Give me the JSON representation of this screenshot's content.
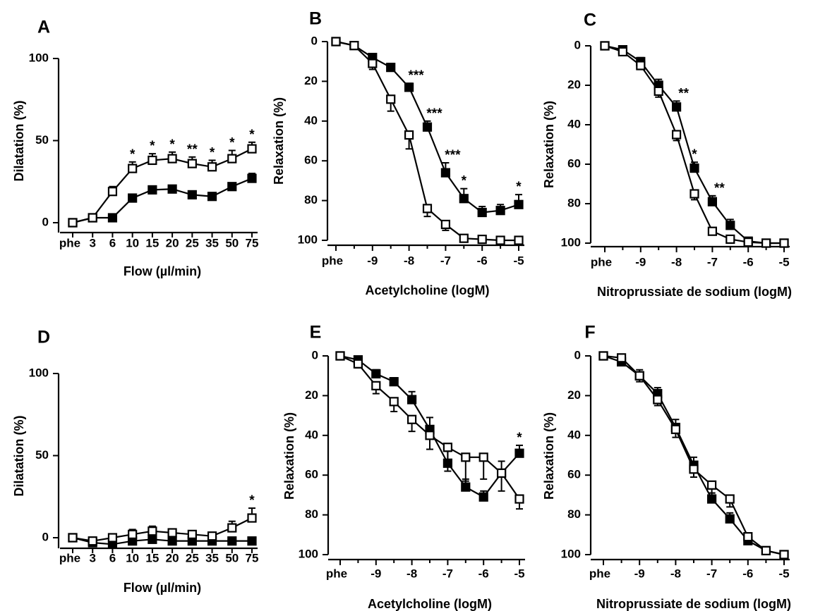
{
  "chart_data": [
    {
      "panel": "A",
      "type": "line",
      "orientation": "up",
      "xlabel": "Flow (µl/min)",
      "ylabel": "Dilatation (%)",
      "ylim": [
        0,
        100
      ],
      "categories": [
        "phe",
        "3",
        "6",
        "10",
        "15",
        "20",
        "25",
        "35",
        "50",
        "75"
      ],
      "yticks": [
        0,
        50,
        100
      ],
      "series": [
        {
          "marker": "filled-square",
          "values": [
            0,
            3,
            3,
            15,
            20,
            20.5,
            17,
            16,
            22,
            27
          ],
          "err": [
            0,
            1,
            1.5,
            2,
            2,
            2,
            2,
            2,
            2,
            3
          ]
        },
        {
          "marker": "open-square",
          "values": [
            0,
            3,
            19,
            33,
            38,
            39,
            36,
            34,
            39,
            45
          ],
          "err": [
            0,
            1,
            3,
            4,
            4,
            4,
            4,
            4,
            5,
            4
          ]
        }
      ],
      "annotations": [
        {
          "category": "10",
          "text": "*"
        },
        {
          "category": "15",
          "text": "*"
        },
        {
          "category": "20",
          "text": "*"
        },
        {
          "category": "25",
          "text": "**"
        },
        {
          "category": "35",
          "text": "*"
        },
        {
          "category": "50",
          "text": "*"
        },
        {
          "category": "75",
          "text": "*"
        }
      ]
    },
    {
      "panel": "B",
      "type": "line",
      "orientation": "down",
      "xlabel": "Acetylcholine (logM)",
      "ylabel": "Relaxation (%)",
      "ylim": [
        0,
        100
      ],
      "x_ticks": [
        {
          "x": -10,
          "label": "phe"
        },
        {
          "x": -9,
          "label": "-9"
        },
        {
          "x": -8,
          "label": "-8"
        },
        {
          "x": -7,
          "label": "-7"
        },
        {
          "x": -6,
          "label": "-6"
        },
        {
          "x": -5,
          "label": "-5"
        }
      ],
      "yticks": [
        0,
        20,
        40,
        60,
        80,
        100
      ],
      "x": [
        -10,
        -9.5,
        -9,
        -8.5,
        -8,
        -7.5,
        -7,
        -6.5,
        -6,
        -5.5,
        -5
      ],
      "series": [
        {
          "marker": "filled-square",
          "values": [
            0,
            2,
            8,
            13,
            23,
            43,
            66,
            79,
            86,
            85,
            82
          ],
          "err": [
            0,
            1,
            1.5,
            2,
            2,
            3,
            5,
            5,
            3,
            3,
            5
          ]
        },
        {
          "marker": "open-square",
          "values": [
            0,
            2,
            11,
            29,
            47,
            84,
            92,
            99,
            99.5,
            100,
            100
          ],
          "err": [
            0,
            1,
            3,
            6,
            7,
            4,
            3,
            1,
            0.5,
            0,
            0
          ]
        }
      ],
      "annotations": [
        {
          "x": -8,
          "text": "***"
        },
        {
          "x": -7.5,
          "text": "***"
        },
        {
          "x": -7,
          "text": "***"
        },
        {
          "x": -6.5,
          "text": "*"
        },
        {
          "x": -5,
          "text": "*"
        }
      ]
    },
    {
      "panel": "C",
      "type": "line",
      "orientation": "down",
      "xlabel": "Nitroprussiate de sodium (logM)",
      "ylabel": "Relaxation (%)",
      "ylim": [
        0,
        100
      ],
      "x_ticks": [
        {
          "x": -10,
          "label": "phe"
        },
        {
          "x": -9,
          "label": "-9"
        },
        {
          "x": -8,
          "label": "-8"
        },
        {
          "x": -7,
          "label": "-7"
        },
        {
          "x": -6,
          "label": "-6"
        },
        {
          "x": -5,
          "label": "-5"
        }
      ],
      "yticks": [
        0,
        20,
        40,
        60,
        80,
        100
      ],
      "x": [
        -10,
        -9.5,
        -9,
        -8.5,
        -8,
        -7.5,
        -7,
        -6.5,
        -6,
        -5.5,
        -5
      ],
      "series": [
        {
          "marker": "filled-square",
          "values": [
            0,
            2,
            8,
            20,
            31,
            62,
            79,
            91,
            99,
            100,
            100
          ],
          "err": [
            0,
            1,
            2,
            3,
            3,
            3,
            3,
            3,
            1,
            0,
            0
          ]
        },
        {
          "marker": "open-square",
          "values": [
            0,
            3,
            10,
            23,
            45,
            75,
            94,
            98,
            99.5,
            100,
            100
          ],
          "err": [
            0,
            1,
            2,
            3,
            3,
            3,
            1,
            1,
            0.5,
            0,
            0
          ]
        }
      ],
      "annotations": [
        {
          "x": -8,
          "text": "**"
        },
        {
          "x": -7.5,
          "text": "*"
        },
        {
          "x": -7,
          "text": "**"
        }
      ]
    },
    {
      "panel": "D",
      "type": "line",
      "orientation": "up",
      "xlabel": "Flow (µl/min)",
      "ylabel": "Dilatation (%)",
      "ylim": [
        0,
        100
      ],
      "categories": [
        "phe",
        "3",
        "6",
        "10",
        "15",
        "20",
        "25",
        "35",
        "50",
        "75"
      ],
      "yticks": [
        0,
        50,
        100
      ],
      "series": [
        {
          "marker": "filled-square",
          "values": [
            0,
            -3,
            -4,
            -2,
            -1,
            -2,
            -2,
            -2,
            -2,
            -2
          ],
          "err": [
            0,
            1,
            1,
            1,
            1,
            1,
            1,
            1,
            1,
            1
          ]
        },
        {
          "marker": "open-square",
          "values": [
            0,
            -2,
            0,
            2,
            4,
            3,
            2,
            1,
            6,
            12
          ],
          "err": [
            0,
            1,
            2,
            3,
            3,
            2,
            2,
            2,
            4,
            6
          ]
        }
      ],
      "annotations": [
        {
          "category": "75",
          "text": "*"
        }
      ]
    },
    {
      "panel": "E",
      "type": "line",
      "orientation": "down",
      "xlabel": "Acetylcholine (logM)",
      "ylabel": "Relaxation (%)",
      "ylim": [
        0,
        100
      ],
      "x_ticks": [
        {
          "x": -10,
          "label": "phe"
        },
        {
          "x": -9,
          "label": "-9"
        },
        {
          "x": -8,
          "label": "-8"
        },
        {
          "x": -7,
          "label": "-7"
        },
        {
          "x": -6,
          "label": "-6"
        },
        {
          "x": -5,
          "label": "-5"
        }
      ],
      "yticks": [
        0,
        20,
        40,
        60,
        80,
        100
      ],
      "x": [
        -10,
        -9.5,
        -9,
        -8.5,
        -8,
        -7.5,
        -7,
        -6.5,
        -6,
        -5.5,
        -5
      ],
      "series": [
        {
          "marker": "filled-square",
          "values": [
            0,
            2,
            9,
            13,
            22,
            37,
            54,
            66,
            71,
            59,
            49
          ],
          "err": [
            0,
            1,
            2,
            2,
            4,
            6,
            6,
            4,
            3,
            6,
            4
          ]
        },
        {
          "marker": "open-square",
          "values": [
            0,
            4,
            15,
            23,
            32,
            40,
            46,
            51,
            51,
            59,
            72
          ],
          "err": [
            0,
            2,
            4,
            5,
            6,
            7,
            12,
            12,
            11,
            9,
            5
          ]
        }
      ],
      "annotations": [
        {
          "x": -5,
          "text": "*"
        }
      ]
    },
    {
      "panel": "F",
      "type": "line",
      "orientation": "down",
      "xlabel": "Nitroprussiate de sodium (logM)",
      "ylabel": "Relaxation (%)",
      "ylim": [
        0,
        100
      ],
      "x_ticks": [
        {
          "x": -10,
          "label": "phe"
        },
        {
          "x": -9,
          "label": "-9"
        },
        {
          "x": -8,
          "label": "-8"
        },
        {
          "x": -7,
          "label": "-7"
        },
        {
          "x": -6,
          "label": "-6"
        },
        {
          "x": -5,
          "label": "-5"
        }
      ],
      "yticks": [
        0,
        20,
        40,
        60,
        80,
        100
      ],
      "x": [
        -10,
        -9.5,
        -9,
        -8.5,
        -8,
        -7.5,
        -7,
        -6.5,
        -6,
        -5.5,
        -5
      ],
      "series": [
        {
          "marker": "filled-square",
          "values": [
            0,
            3,
            10,
            19,
            36,
            55,
            72,
            82,
            93,
            98,
            100
          ],
          "err": [
            0,
            1,
            3,
            3,
            4,
            4,
            3,
            3,
            2,
            1,
            0
          ]
        },
        {
          "marker": "open-square",
          "values": [
            0,
            1,
            10,
            22,
            37,
            57,
            65,
            72,
            91,
            98,
            100
          ],
          "err": [
            0,
            1,
            3,
            3,
            4,
            4,
            4,
            4,
            2,
            1,
            0
          ]
        }
      ],
      "annotations": []
    }
  ]
}
